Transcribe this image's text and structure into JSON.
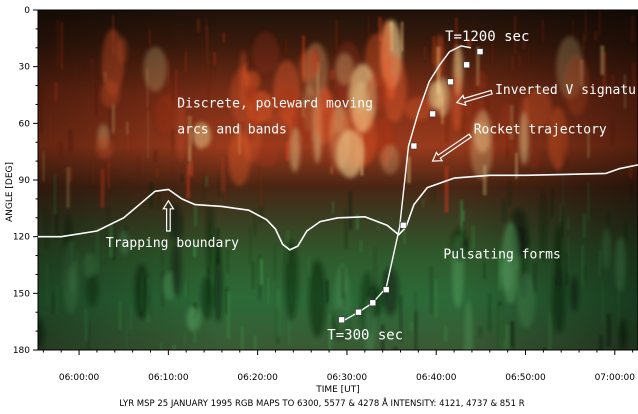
{
  "chart_data": {
    "type": "heatmap",
    "xlabel": "TIME [UT]",
    "ylabel": "ANGLE [DEG]",
    "caption": "LYR MSP 25 JANUARY 1995 RGB MAPS TO 6300, 5577 & 4278 Å  INTENSITY: 4121, 4737 & 851 R",
    "x_ticks_min": [
      0,
      10,
      20,
      30,
      40,
      50,
      60
    ],
    "x_tick_labels": [
      "06:00:00",
      "06:10:00",
      "06:20:00",
      "06:30:00",
      "06:40:00",
      "06:50:00",
      "07:00:00"
    ],
    "xlim_min": [
      -4.6,
      62.6
    ],
    "y_ticks": [
      0,
      30,
      60,
      90,
      120,
      150,
      180
    ],
    "y_tick_labels": [
      "0",
      "30",
      "60",
      "90",
      "120",
      "150",
      "180"
    ],
    "ylim": [
      0,
      180
    ],
    "y_inverted": true,
    "trapping_boundary": {
      "x_min": [
        -4.6,
        -2,
        2,
        5,
        7,
        8.5,
        10,
        11.5,
        13,
        16,
        19,
        21,
        22,
        22.8,
        23.6,
        24.5,
        25.5,
        27,
        29,
        32,
        34.5,
        35.8,
        36.6,
        37.5,
        39,
        42,
        46,
        50,
        55,
        59,
        60.5,
        62.6
      ],
      "y_deg": [
        120,
        120,
        117,
        110,
        102,
        96,
        95,
        100,
        103,
        104,
        106,
        111,
        116,
        124,
        127,
        125,
        117,
        112,
        110,
        109.5,
        114,
        119,
        115,
        103,
        94,
        89,
        87.5,
        87.5,
        87,
        86.5,
        84,
        82
      ]
    },
    "rocket_trajectory": {
      "x_min": [
        29.4,
        31.3,
        32.9,
        34.4,
        35.9,
        36.9,
        38.0,
        39.2,
        40.4,
        41.5,
        42.8,
        43.9
      ],
      "y_deg": [
        165,
        160,
        155,
        147,
        115,
        72,
        54,
        38,
        29,
        22,
        19,
        20
      ]
    },
    "trajectory_markers": {
      "x_min": [
        29.4,
        31.3,
        32.9,
        34.4,
        36.3,
        37.5,
        39.6,
        41.6,
        43.4,
        44.9
      ],
      "y_deg": [
        164,
        160,
        155,
        148,
        114,
        72,
        55,
        38,
        29,
        22
      ]
    },
    "annotations": {
      "t1200": "T=1200 sec",
      "t300": "T=300 sec",
      "inverted_v": "Inverted V signature",
      "discrete_line1": "Discrete, poleward moving",
      "discrete_line2": "arcs and bands",
      "rocket": "Rocket trajectory",
      "trapping": "Trapping boundary",
      "pulsating": "Pulsating forms"
    },
    "colors": {
      "background_dark": "#1a1008",
      "aurora_red": "#c0361a",
      "aurora_green": "#2f7a3a",
      "annotation": "#ffffff"
    }
  }
}
